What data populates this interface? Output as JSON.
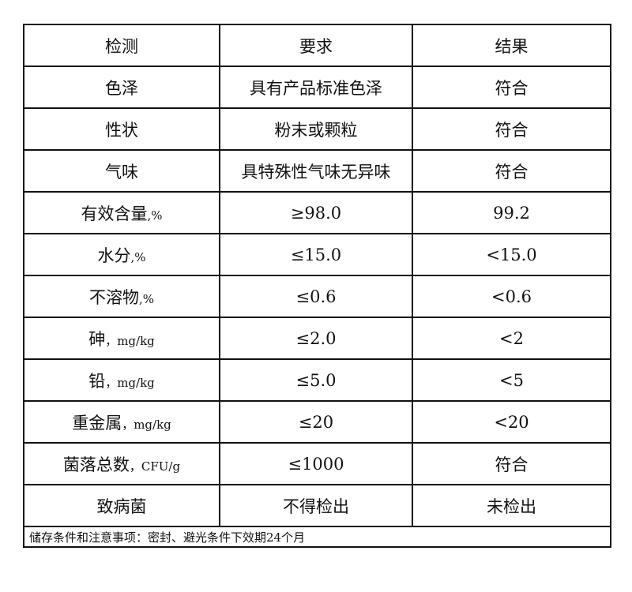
{
  "headers": [
    "检测",
    "要求",
    "结果"
  ],
  "rows": [
    {
      "item": "色泽",
      "unit": "",
      "requirement": "具有产品标准色泽",
      "result": "符合"
    },
    {
      "item": "性状",
      "unit": "",
      "requirement": "粉末或颗粒",
      "result": "符合"
    },
    {
      "item": "气味",
      "unit": "",
      "requirement": "具特殊性气味无异味",
      "result": "符合"
    },
    {
      "item": "有效含量",
      "unit": ",%",
      "requirement": "≥98.0",
      "result": "99.2"
    },
    {
      "item": "水分",
      "unit": ",%",
      "requirement": "≤15.0",
      "result": "<15.0"
    },
    {
      "item": "不溶物",
      "unit": ",%",
      "requirement": "≤0.6",
      "result": "<0.6"
    },
    {
      "item": "砷",
      "unit": "，mg/kg",
      "requirement": "≤2.0",
      "result": "<2"
    },
    {
      "item": "铅",
      "unit": "，mg/kg",
      "requirement": "≤5.0",
      "result": "<5"
    },
    {
      "item": "重金属",
      "unit": "，mg/kg",
      "requirement": "≤20",
      "result": "<20"
    },
    {
      "item": "菌落总数",
      "unit": "，CFU/g",
      "requirement": "≤1000",
      "result": "符合"
    },
    {
      "item": "致病菌",
      "unit": "",
      "requirement": "不得检出",
      "result": "未检出"
    }
  ],
  "footer": "储存条件和注意事项：密封、避光条件下效期24个月"
}
